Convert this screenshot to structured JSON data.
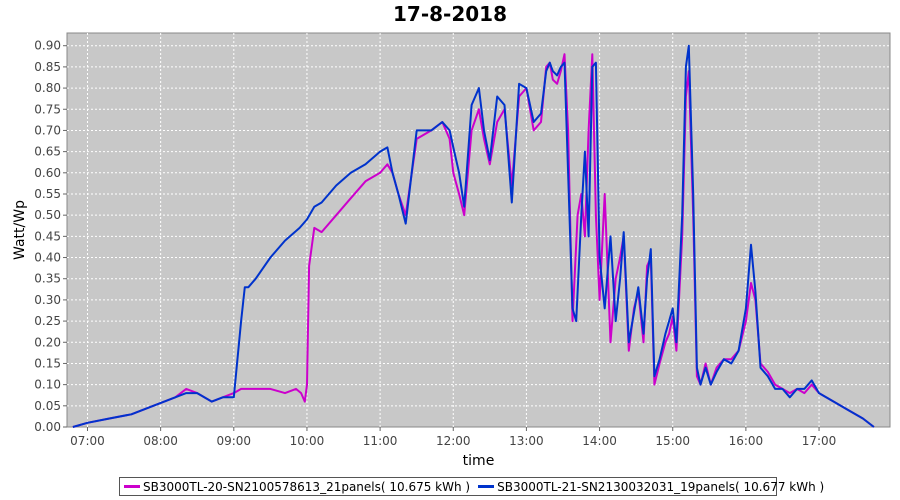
{
  "chart_data": {
    "type": "line",
    "title": "17-8-2018",
    "xlabel": "time",
    "ylabel": "Watt/Wp",
    "xlim": [
      6.72,
      17.97
    ],
    "ylim": [
      0,
      0.93
    ],
    "grid": true,
    "legend_position": "bottom",
    "plot_background": "#c8c8c8",
    "x_ticks": [
      "07:00",
      "08:00",
      "09:00",
      "10:00",
      "11:00",
      "12:00",
      "13:00",
      "14:00",
      "15:00",
      "16:00",
      "17:00"
    ],
    "y_ticks": [
      "0.00",
      "0.05",
      "0.10",
      "0.15",
      "0.20",
      "0.25",
      "0.30",
      "0.35",
      "0.40",
      "0.45",
      "0.50",
      "0.55",
      "0.60",
      "0.65",
      "0.70",
      "0.75",
      "0.80",
      "0.85",
      "0.90"
    ],
    "series": [
      {
        "name": "SB3000TL-20-SN2100578613_21panels( 10.675 kWh )",
        "color": "#cc00cc",
        "x": [
          6.8,
          7.0,
          7.3,
          7.6,
          7.9,
          8.2,
          8.35,
          8.5,
          8.7,
          8.85,
          9.0,
          9.1,
          9.3,
          9.5,
          9.7,
          9.85,
          9.92,
          9.97,
          10.0,
          10.03,
          10.1,
          10.2,
          10.4,
          10.6,
          10.8,
          11.0,
          11.1,
          11.17,
          11.25,
          11.35,
          11.5,
          11.7,
          11.85,
          11.95,
          12.0,
          12.08,
          12.15,
          12.25,
          12.35,
          12.42,
          12.5,
          12.6,
          12.7,
          12.8,
          12.9,
          13.0,
          13.1,
          13.2,
          13.27,
          13.32,
          13.36,
          13.42,
          13.47,
          13.52,
          13.57,
          13.63,
          13.7,
          13.75,
          13.8,
          13.85,
          13.9,
          13.95,
          14.0,
          14.07,
          14.15,
          14.22,
          14.28,
          14.33,
          14.4,
          14.47,
          14.53,
          14.6,
          14.65,
          14.7,
          14.75,
          14.82,
          14.9,
          14.95,
          15.0,
          15.05,
          15.13,
          15.18,
          15.22,
          15.28,
          15.33,
          15.38,
          15.45,
          15.52,
          15.6,
          15.7,
          15.8,
          15.9,
          16.0,
          16.07,
          16.13,
          16.2,
          16.3,
          16.4,
          16.5,
          16.6,
          16.7,
          16.8,
          16.9,
          17.0,
          17.2,
          17.4,
          17.6,
          17.75
        ],
        "y": [
          0.0,
          0.01,
          0.02,
          0.03,
          0.05,
          0.07,
          0.09,
          0.08,
          0.06,
          0.07,
          0.08,
          0.09,
          0.09,
          0.09,
          0.08,
          0.09,
          0.08,
          0.06,
          0.1,
          0.38,
          0.47,
          0.46,
          0.5,
          0.54,
          0.58,
          0.6,
          0.62,
          0.6,
          0.55,
          0.5,
          0.68,
          0.7,
          0.72,
          0.68,
          0.6,
          0.55,
          0.5,
          0.7,
          0.75,
          0.68,
          0.62,
          0.72,
          0.75,
          0.57,
          0.78,
          0.8,
          0.7,
          0.72,
          0.85,
          0.86,
          0.82,
          0.81,
          0.84,
          0.88,
          0.7,
          0.25,
          0.5,
          0.55,
          0.45,
          0.7,
          0.88,
          0.5,
          0.3,
          0.55,
          0.2,
          0.35,
          0.4,
          0.45,
          0.18,
          0.28,
          0.32,
          0.2,
          0.38,
          0.4,
          0.1,
          0.15,
          0.2,
          0.22,
          0.26,
          0.18,
          0.45,
          0.78,
          0.84,
          0.5,
          0.12,
          0.1,
          0.15,
          0.1,
          0.14,
          0.16,
          0.16,
          0.18,
          0.25,
          0.34,
          0.3,
          0.15,
          0.13,
          0.1,
          0.09,
          0.08,
          0.09,
          0.08,
          0.1,
          0.08,
          0.06,
          0.04,
          0.02,
          0.0
        ]
      },
      {
        "name": "SB3000TL-21-SN2130032031_19panels( 10.677 kWh )",
        "color": "#0033cc",
        "x": [
          6.8,
          7.0,
          7.3,
          7.6,
          7.9,
          8.2,
          8.35,
          8.5,
          8.7,
          8.85,
          9.0,
          9.1,
          9.15,
          9.2,
          9.3,
          9.5,
          9.7,
          9.9,
          10.0,
          10.1,
          10.2,
          10.4,
          10.6,
          10.8,
          11.0,
          11.1,
          11.17,
          11.25,
          11.35,
          11.5,
          11.7,
          11.85,
          11.95,
          12.0,
          12.08,
          12.15,
          12.25,
          12.35,
          12.42,
          12.5,
          12.6,
          12.7,
          12.8,
          12.9,
          13.0,
          13.1,
          13.2,
          13.27,
          13.32,
          13.36,
          13.42,
          13.47,
          13.52,
          13.57,
          13.63,
          13.68,
          13.75,
          13.8,
          13.85,
          13.9,
          13.95,
          14.0,
          14.07,
          14.15,
          14.22,
          14.28,
          14.33,
          14.4,
          14.47,
          14.53,
          14.6,
          14.65,
          14.7,
          14.75,
          14.82,
          14.9,
          14.95,
          15.0,
          15.05,
          15.13,
          15.18,
          15.22,
          15.28,
          15.33,
          15.38,
          15.45,
          15.52,
          15.6,
          15.7,
          15.8,
          15.9,
          16.0,
          16.07,
          16.13,
          16.2,
          16.3,
          16.4,
          16.5,
          16.6,
          16.7,
          16.8,
          16.9,
          17.0,
          17.2,
          17.4,
          17.6,
          17.75
        ],
        "y": [
          0.0,
          0.01,
          0.02,
          0.03,
          0.05,
          0.07,
          0.08,
          0.08,
          0.06,
          0.07,
          0.07,
          0.25,
          0.33,
          0.33,
          0.35,
          0.4,
          0.44,
          0.47,
          0.49,
          0.52,
          0.53,
          0.57,
          0.6,
          0.62,
          0.65,
          0.66,
          0.6,
          0.55,
          0.48,
          0.7,
          0.7,
          0.72,
          0.7,
          0.66,
          0.6,
          0.52,
          0.76,
          0.8,
          0.7,
          0.63,
          0.78,
          0.76,
          0.53,
          0.81,
          0.8,
          0.72,
          0.74,
          0.84,
          0.86,
          0.84,
          0.83,
          0.85,
          0.86,
          0.6,
          0.28,
          0.25,
          0.5,
          0.65,
          0.45,
          0.85,
          0.86,
          0.4,
          0.28,
          0.45,
          0.25,
          0.35,
          0.46,
          0.2,
          0.27,
          0.33,
          0.22,
          0.35,
          0.42,
          0.12,
          0.16,
          0.22,
          0.25,
          0.28,
          0.2,
          0.5,
          0.85,
          0.9,
          0.55,
          0.14,
          0.1,
          0.14,
          0.1,
          0.13,
          0.16,
          0.15,
          0.18,
          0.28,
          0.43,
          0.32,
          0.14,
          0.12,
          0.09,
          0.09,
          0.07,
          0.09,
          0.09,
          0.11,
          0.08,
          0.06,
          0.04,
          0.02,
          0.0
        ]
      }
    ]
  }
}
